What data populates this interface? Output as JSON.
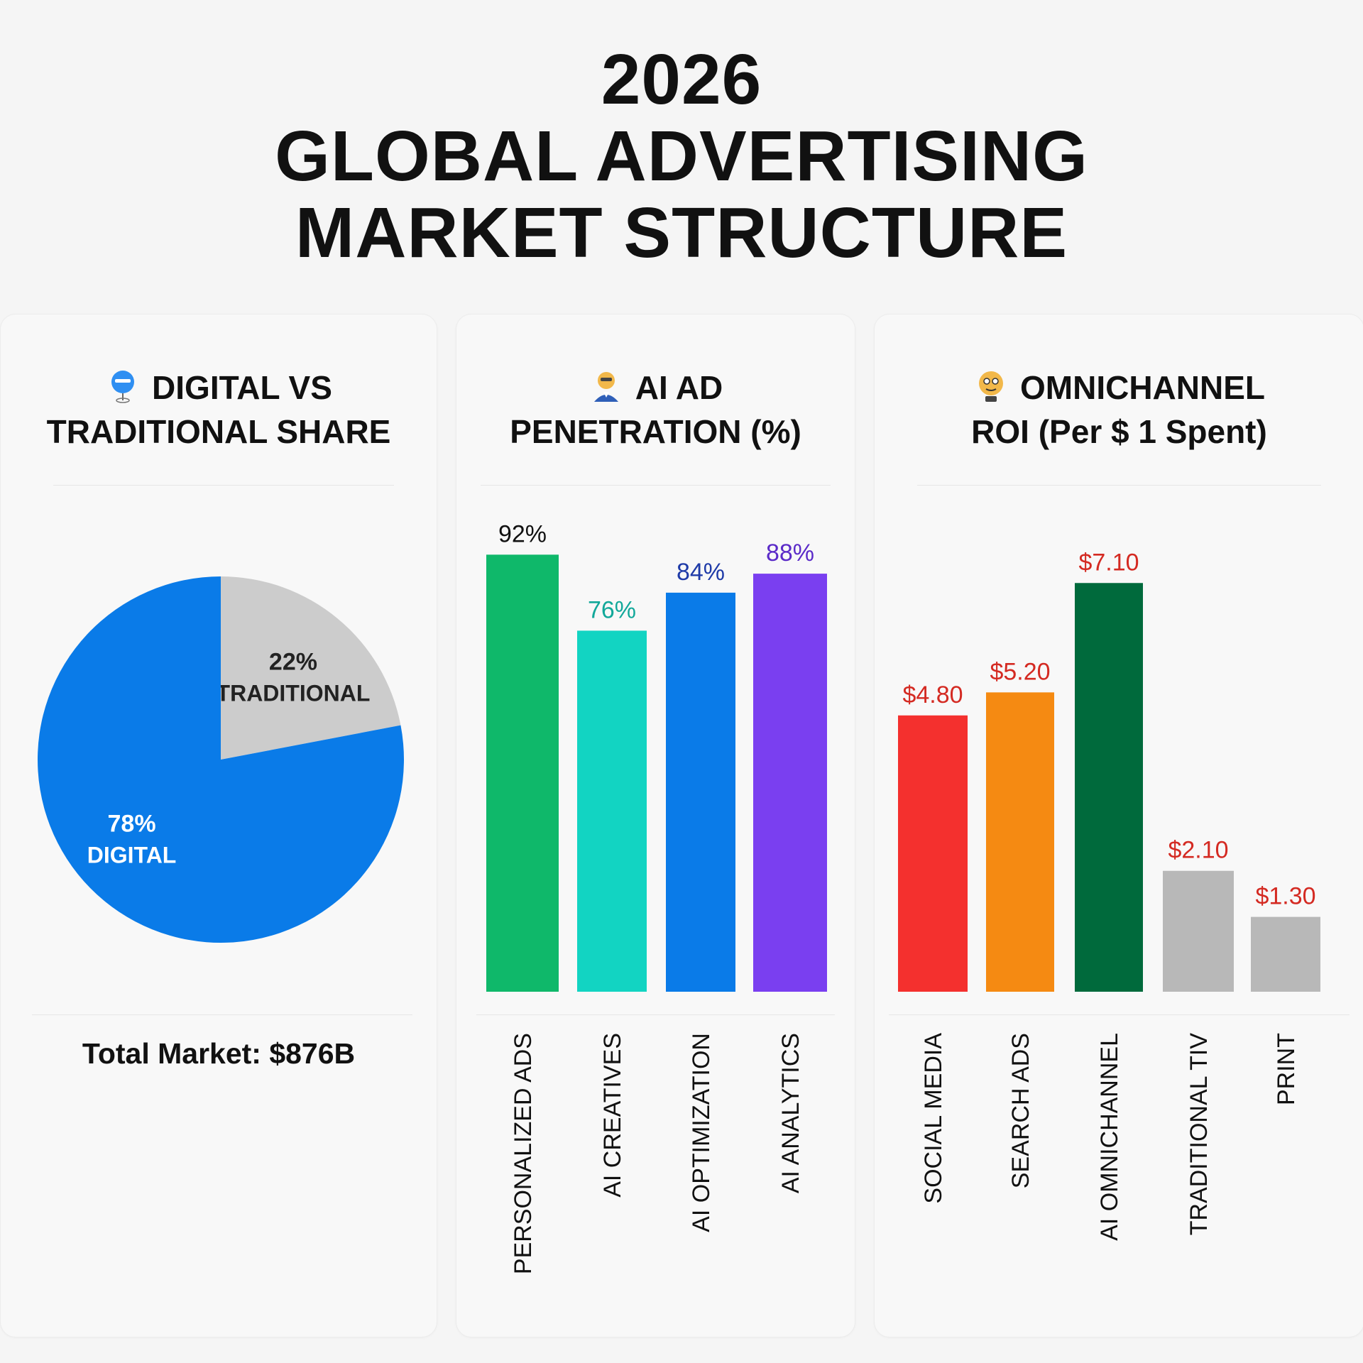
{
  "page": {
    "title_lines": [
      "2026",
      "GLOBAL ADVERTISING",
      "MARKET STRUCTURE"
    ]
  },
  "panels": [
    {
      "title_lines": [
        "DIGITAL VS",
        "TRADITIONAL SHARE"
      ],
      "icon": "pin-icon",
      "footer": "Total Market: $876B"
    },
    {
      "title_lines": [
        "AI AD",
        "PENETRATION (%)"
      ],
      "icon": "robot-icon"
    },
    {
      "title_lines": [
        "OMNICHANNEL",
        "ROI (Per $ 1 Spent)"
      ],
      "icon": "face-icon"
    }
  ],
  "chart_data": [
    {
      "type": "pie",
      "title": "DIGITAL VS TRADITIONAL SHARE",
      "slices": [
        {
          "label": "TRADITIONAL",
          "value": 22,
          "value_label": "22%",
          "color": "#cccccc",
          "text_color": "#222222"
        },
        {
          "label": "DIGITAL",
          "value": 78,
          "value_label": "78%",
          "color": "#0a7be8",
          "text_color": "#ffffff"
        }
      ]
    },
    {
      "type": "bar",
      "title": "AI AD PENETRATION (%)",
      "categories": [
        "PERSONALIZED ADS",
        "AI CREATIVES",
        "AI OPTIMIZATION",
        "AI ANALYTICS"
      ],
      "values": [
        92,
        76,
        84,
        88
      ],
      "value_labels": [
        "92%",
        "76%",
        "84%",
        "88%"
      ],
      "colors": [
        "#0fb86a",
        "#12d4c2",
        "#0a7be8",
        "#7a3ff0"
      ],
      "label_colors": [
        "#111111",
        "#12a89a",
        "#1f3ba8",
        "#5b2bc8"
      ],
      "ylim": [
        0,
        100
      ]
    },
    {
      "type": "bar",
      "title": "OMNICHANNEL ROI (Per $ 1 Spent)",
      "categories": [
        "SOCIAL MEDIA",
        "SEARCH ADS",
        "AI OMNICHANNEL",
        "TRADITIONAL TIV",
        "PRINT"
      ],
      "values": [
        4.8,
        5.2,
        7.1,
        2.1,
        1.3
      ],
      "value_labels": [
        "$4.80",
        "$5.20",
        "$7.10",
        "$2.10",
        "$1.30"
      ],
      "colors": [
        "#f4302e",
        "#f58a12",
        "#006a3c",
        "#b8b8b8",
        "#b8b8b8"
      ],
      "label_colors": [
        "#d42a22",
        "#d42a22",
        "#d42a22",
        "#d42a22",
        "#d42a22"
      ],
      "ylim": [
        0,
        9
      ]
    }
  ]
}
